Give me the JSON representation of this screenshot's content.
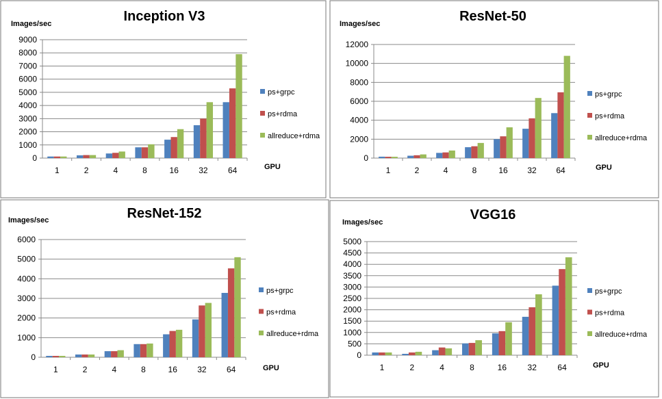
{
  "chart_data": [
    {
      "type": "bar",
      "title": "Inception V3",
      "ylabel": "Images/sec",
      "xlabel": "GPU",
      "categories": [
        "1",
        "2",
        "4",
        "8",
        "16",
        "32",
        "64"
      ],
      "ylim": [
        0,
        9000
      ],
      "yticks": [
        0,
        1000,
        2000,
        3000,
        4000,
        5000,
        6000,
        7000,
        8000,
        9000
      ],
      "grid": true,
      "legend": "right",
      "series": [
        {
          "name": "ps+grpc",
          "color": "#4F81BD",
          "values": [
            120,
            210,
            350,
            820,
            1400,
            2500,
            4250
          ]
        },
        {
          "name": "ps+rdma",
          "color": "#C0504D",
          "values": [
            120,
            230,
            400,
            820,
            1600,
            3000,
            5300
          ]
        },
        {
          "name": "allreduce+rdma",
          "color": "#9BBB59",
          "values": [
            120,
            230,
            500,
            1050,
            2200,
            4250,
            7900
          ]
        }
      ]
    },
    {
      "type": "bar",
      "title": "ResNet-50",
      "ylabel": "Images/sec",
      "xlabel": "GPU",
      "categories": [
        "1",
        "2",
        "4",
        "8",
        "16",
        "32",
        "64"
      ],
      "ylim": [
        0,
        12000
      ],
      "yticks": [
        0,
        2000,
        4000,
        6000,
        8000,
        10000,
        12000
      ],
      "grid": true,
      "legend": "right",
      "series": [
        {
          "name": "ps+grpc",
          "color": "#4F81BD",
          "values": [
            150,
            250,
            550,
            1150,
            2000,
            3100,
            4750
          ]
        },
        {
          "name": "ps+rdma",
          "color": "#C0504D",
          "values": [
            140,
            300,
            600,
            1250,
            2300,
            4200,
            6950
          ]
        },
        {
          "name": "allreduce+rdma",
          "color": "#9BBB59",
          "values": [
            140,
            390,
            800,
            1600,
            3250,
            6350,
            10800
          ]
        }
      ]
    },
    {
      "type": "bar",
      "title": "ResNet-152",
      "ylabel": "Images/sec",
      "xlabel": "GPU",
      "categories": [
        "1",
        "2",
        "4",
        "8",
        "16",
        "32",
        "64"
      ],
      "ylim": [
        0,
        6000
      ],
      "yticks": [
        0,
        1000,
        2000,
        3000,
        4000,
        5000,
        6000
      ],
      "grid": true,
      "legend": "right",
      "series": [
        {
          "name": "ps+grpc",
          "color": "#4F81BD",
          "values": [
            70,
            140,
            310,
            670,
            1170,
            1930,
            3280
          ]
        },
        {
          "name": "ps+rdma",
          "color": "#C0504D",
          "values": [
            70,
            140,
            310,
            670,
            1340,
            2640,
            4530
          ]
        },
        {
          "name": "allreduce+rdma",
          "color": "#9BBB59",
          "values": [
            70,
            140,
            360,
            700,
            1400,
            2770,
            5100
          ]
        }
      ]
    },
    {
      "type": "bar",
      "title": "VGG16",
      "ylabel": "Images/sec",
      "xlabel": "GPU",
      "categories": [
        "1",
        "2",
        "4",
        "8",
        "16",
        "32",
        "64"
      ],
      "ylim": [
        0,
        5000
      ],
      "yticks": [
        0,
        500,
        1000,
        1500,
        2000,
        2500,
        3000,
        3500,
        4000,
        4500,
        5000
      ],
      "grid": true,
      "legend": "right",
      "series": [
        {
          "name": "ps+grpc",
          "color": "#4F81BD",
          "values": [
            120,
            60,
            220,
            520,
            960,
            1690,
            3060
          ]
        },
        {
          "name": "ps+rdma",
          "color": "#C0504D",
          "values": [
            120,
            120,
            340,
            540,
            1060,
            2110,
            3790
          ]
        },
        {
          "name": "allreduce+rdma",
          "color": "#9BBB59",
          "values": [
            120,
            150,
            300,
            660,
            1450,
            2680,
            4310
          ]
        }
      ]
    }
  ]
}
